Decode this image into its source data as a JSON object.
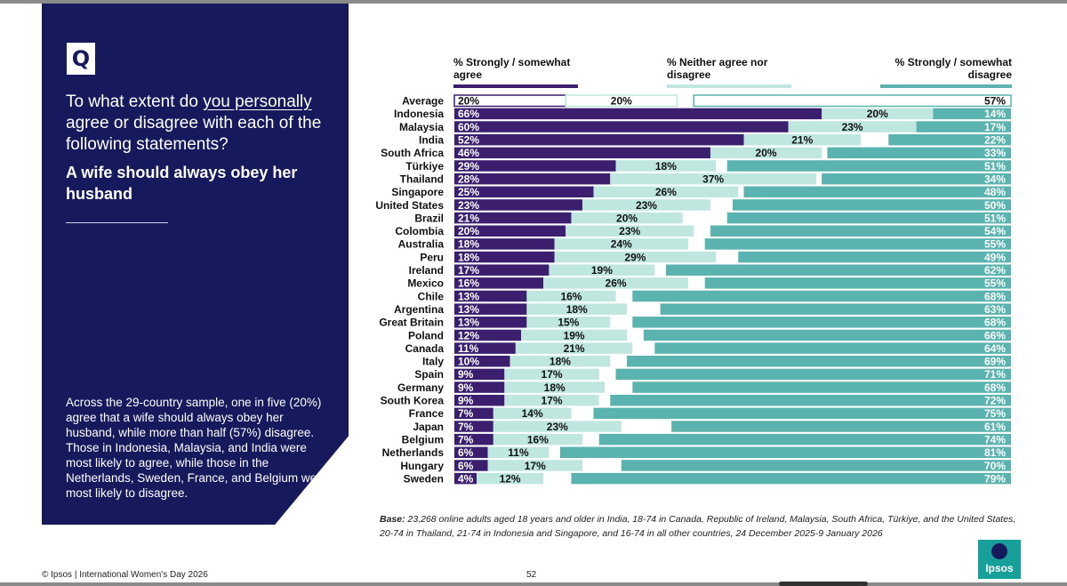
{
  "side": {
    "badge": "Q",
    "question_before": "To what extent do ",
    "question_underlined": "you personally",
    "question_after": " agree or disagree with each of the following statements?",
    "statement": "A wife should always obey her husband",
    "summary": "Across the 29-country sample, one in five (20%) agree that a wife should always obey her husband, while more than half (57%) disagree. Those in Indonesia, Malaysia, and India were most likely to agree, while those in the Netherlands, Sweden, France, and Belgium were most likely to disagree."
  },
  "legend": {
    "agree": "% Strongly / somewhat agree",
    "neither": "% Neither agree nor disagree",
    "disagree": "% Strongly / somewhat disagree"
  },
  "chart_data": {
    "type": "bar",
    "orientation": "horizontal-stacked",
    "unit": "%",
    "categories": [
      "Average",
      "Indonesia",
      "Malaysia",
      "India",
      "South Africa",
      "Türkiye",
      "Thailand",
      "Singapore",
      "United States",
      "Brazil",
      "Colombia",
      "Australia",
      "Peru",
      "Ireland",
      "Mexico",
      "Chile",
      "Argentina",
      "Great Britain",
      "Poland",
      "Canada",
      "Italy",
      "Spain",
      "Germany",
      "South Korea",
      "France",
      "Japan",
      "Belgium",
      "Netherlands",
      "Hungary",
      "Sweden"
    ],
    "series": [
      {
        "name": "% Strongly / somewhat agree",
        "color": "#3b1f6e",
        "values": [
          20,
          66,
          60,
          52,
          46,
          29,
          28,
          25,
          23,
          21,
          20,
          18,
          18,
          17,
          16,
          13,
          13,
          13,
          12,
          11,
          10,
          9,
          9,
          9,
          7,
          7,
          7,
          6,
          6,
          4
        ]
      },
      {
        "name": "% Neither agree nor disagree",
        "color": "#bfe6df",
        "values": [
          20,
          20,
          23,
          21,
          20,
          18,
          37,
          26,
          23,
          20,
          23,
          24,
          29,
          19,
          26,
          16,
          18,
          15,
          19,
          21,
          18,
          17,
          18,
          17,
          14,
          23,
          16,
          11,
          17,
          12
        ]
      },
      {
        "name": "% Strongly / somewhat disagree",
        "color": "#5ab3ae",
        "values": [
          57,
          14,
          17,
          22,
          33,
          51,
          34,
          48,
          50,
          51,
          54,
          55,
          49,
          62,
          55,
          68,
          63,
          68,
          66,
          64,
          69,
          71,
          68,
          72,
          75,
          61,
          74,
          81,
          70,
          79
        ]
      }
    ],
    "average_style": "outlined"
  },
  "base": {
    "label": "Base:",
    "text": " 23,268 online adults aged 18 years and older in India, 18-74 in Canada, Republic of Ireland, Malaysia, South Africa, Türkiye, and the United States, 20-74 in Thailand, 21-74 in Indonesia and Singapore, and 16-74 in all other countries, 24 December 2025-9 January 2026"
  },
  "footer": {
    "copyright": "© Ipsos | International Women's Day 2026",
    "page": "52",
    "logo": "Ipsos"
  }
}
